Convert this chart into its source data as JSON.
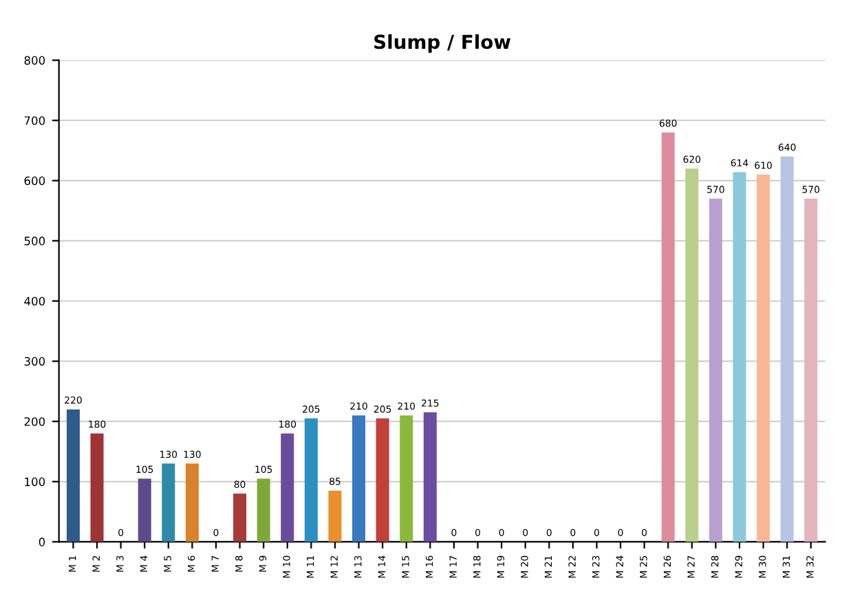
{
  "chart_data": {
    "type": "bar",
    "title": "Slump / Flow",
    "categories": [
      "M 1",
      "M 2",
      "M 3",
      "M 4",
      "M 5",
      "M 6",
      "M 7",
      "M 8",
      "M 9",
      "M 10",
      "M 11",
      "M 12",
      "M 13",
      "M 14",
      "M 15",
      "M 16",
      "M 17",
      "M 18",
      "M 19",
      "M 20",
      "M 21",
      "M 22",
      "M 23",
      "M 24",
      "M 25",
      "M 26",
      "M 27",
      "M 28",
      "M 29",
      "M 30",
      "M 31",
      "M 32"
    ],
    "values": [
      220,
      180,
      0,
      105,
      130,
      130,
      0,
      80,
      105,
      180,
      205,
      85,
      210,
      205,
      210,
      215,
      0,
      0,
      0,
      0,
      0,
      0,
      0,
      0,
      0,
      680,
      620,
      570,
      614,
      610,
      640,
      570
    ],
    "colors": [
      "#2e5c8a",
      "#9e3434",
      "#8aa845",
      "#5e4a8a",
      "#2f8aa8",
      "#d9822b",
      "#2e5c8a",
      "#a83a3a",
      "#7ea83a",
      "#6a4c9c",
      "#2b90c0",
      "#e8912c",
      "#3a78c0",
      "#c0403a",
      "#8ab83a",
      "#6a4ca0",
      "#4a7ab8",
      "#b84a4a",
      "#8ab84a",
      "#7a5ab0",
      "#3a9ac0",
      "#e89a4a",
      "#4a80c0",
      "#c04a4a",
      "#9ac04a",
      "#dc8c9c",
      "#b8d08c",
      "#b8a0d0",
      "#8cc8dc",
      "#f8b894",
      "#b8c4e4",
      "#e4b4bc"
    ],
    "ylim": [
      0,
      800
    ],
    "yticks": [
      0,
      100,
      200,
      300,
      400,
      500,
      600,
      700,
      800
    ],
    "grid": "y",
    "data_labels": true
  }
}
